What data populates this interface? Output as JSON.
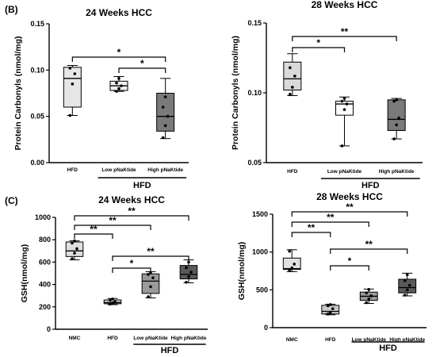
{
  "panel_labels": [
    "(B)",
    "(C)"
  ],
  "chart_data": [
    {
      "type": "box",
      "title": "24 Weeks HCC",
      "ylabel": "Protein Carbonyls (nmol/mg)",
      "ylim": [
        0,
        0.15
      ],
      "yticks": [
        "0.00",
        "0.05",
        "0.10",
        "0.15"
      ],
      "ytick_values": [
        0,
        0.05,
        0.1,
        0.15
      ],
      "group_label": "HFD",
      "categories": [
        "HFD",
        "Low pNaKtide",
        "High pNaKtide"
      ],
      "grouped": [
        false,
        true,
        true
      ],
      "boxes": [
        {
          "min": 0.051,
          "q1": 0.06,
          "median": 0.091,
          "q3": 0.103,
          "max": 0.105,
          "fill": "#e6e6e6",
          "points": [
            0.051,
            0.085,
            0.096,
            0.102
          ]
        },
        {
          "min": 0.077,
          "q1": 0.078,
          "median": 0.083,
          "q3": 0.088,
          "max": 0.093,
          "fill": "#f2f2f2",
          "points": [
            0.077,
            0.08,
            0.083,
            0.086,
            0.091
          ]
        },
        {
          "min": 0.026,
          "q1": 0.034,
          "median": 0.05,
          "q3": 0.075,
          "max": 0.091,
          "fill": "#7a7a7a",
          "points": [
            0.027,
            0.04,
            0.05,
            0.06,
            0.071
          ]
        }
      ],
      "significance": [
        {
          "from": 0,
          "to": 2,
          "label": "*"
        },
        {
          "from": 1,
          "to": 2,
          "label": "*"
        }
      ]
    },
    {
      "type": "box",
      "title": "28 Weeks HCC",
      "ylabel": "Protein Carbonyls (nmol/mg)",
      "ylim": [
        0.05,
        0.15
      ],
      "yticks": [
        "0.05",
        "0.10",
        "0.15"
      ],
      "ytick_values": [
        0.05,
        0.1,
        0.15
      ],
      "group_label": "HFD",
      "categories": [
        "HFD",
        "Low pNaKtide",
        "High pNaKtide"
      ],
      "grouped": [
        false,
        true,
        true
      ],
      "boxes": [
        {
          "min": 0.098,
          "q1": 0.102,
          "median": 0.11,
          "q3": 0.122,
          "max": 0.128,
          "fill": "#d9d9d9",
          "points": [
            0.099,
            0.104,
            0.112,
            0.118
          ]
        },
        {
          "min": 0.062,
          "q1": 0.084,
          "median": 0.092,
          "q3": 0.094,
          "max": 0.097,
          "fill": "#ffffff",
          "points": [
            0.062,
            0.088,
            0.092,
            0.094,
            0.096
          ]
        },
        {
          "min": 0.067,
          "q1": 0.073,
          "median": 0.081,
          "q3": 0.095,
          "max": 0.096,
          "fill": "#7a7a7a",
          "points": [
            0.067,
            0.077,
            0.082,
            0.094,
            0.095
          ]
        }
      ],
      "significance": [
        {
          "from": 0,
          "to": 1,
          "label": "*"
        },
        {
          "from": 0,
          "to": 2,
          "label": "**"
        }
      ]
    },
    {
      "type": "box",
      "title": "24 Weeks HCC",
      "ylabel": "GSH(nmol/mg)",
      "ylim": [
        0,
        1000
      ],
      "yticks": [
        "0",
        "200",
        "400",
        "600",
        "800",
        "1000"
      ],
      "ytick_values": [
        0,
        200,
        400,
        600,
        800,
        1000
      ],
      "group_label": "HFD",
      "categories": [
        "NMC",
        "HFD",
        "Low pNaKtide",
        "High pNaKtide"
      ],
      "grouped": [
        false,
        false,
        true,
        true
      ],
      "boxes": [
        {
          "min": 620,
          "q1": 650,
          "median": 700,
          "q3": 780,
          "max": 790,
          "fill": "#e0e0e0",
          "points": [
            630,
            680,
            720,
            770,
            790
          ]
        },
        {
          "min": 220,
          "q1": 228,
          "median": 238,
          "q3": 262,
          "max": 275,
          "fill": "#c8c8c8",
          "points": [
            225,
            235,
            245,
            260,
            270
          ]
        },
        {
          "min": 280,
          "q1": 320,
          "median": 430,
          "q3": 495,
          "max": 515,
          "fill": "#9a9a9a",
          "points": [
            290,
            380,
            460,
            490,
            505
          ]
        },
        {
          "min": 415,
          "q1": 450,
          "median": 490,
          "q3": 570,
          "max": 620,
          "fill": "#5a5a5a",
          "points": [
            420,
            470,
            510,
            550,
            600
          ]
        }
      ],
      "significance": [
        {
          "from": 0,
          "to": 1,
          "label": "**"
        },
        {
          "from": 0,
          "to": 2,
          "label": "**"
        },
        {
          "from": 0,
          "to": 3,
          "label": "**"
        },
        {
          "from": 1,
          "to": 2,
          "label": "*"
        },
        {
          "from": 1,
          "to": 3,
          "label": "**"
        }
      ]
    },
    {
      "type": "box",
      "title": "28 Weeks HCC",
      "ylabel": "GSH(nmol/mg)",
      "ylim": [
        0,
        1500
      ],
      "yticks": [
        "0",
        "500",
        "1000",
        "1500"
      ],
      "ytick_values": [
        0,
        500,
        1000,
        1500
      ],
      "group_label": "HFD",
      "categories": [
        "NMC",
        "HFD",
        "Low pNaKtide",
        "High pNaKtide"
      ],
      "grouped": [
        false,
        false,
        true,
        true
      ],
      "boxes": [
        {
          "min": 740,
          "q1": 770,
          "median": 780,
          "q3": 920,
          "max": 1030,
          "fill": "#e0e0e0",
          "points": [
            760,
            790,
            840,
            1010
          ]
        },
        {
          "min": 170,
          "q1": 180,
          "median": 215,
          "q3": 295,
          "max": 310,
          "fill": "#c8c8c8",
          "points": [
            180,
            200,
            250,
            290,
            305
          ]
        },
        {
          "min": 320,
          "q1": 360,
          "median": 415,
          "q3": 470,
          "max": 510,
          "fill": "#9a9a9a",
          "points": [
            330,
            380,
            420,
            460,
            505
          ]
        },
        {
          "min": 420,
          "q1": 460,
          "median": 530,
          "q3": 640,
          "max": 720,
          "fill": "#5a5a5a",
          "points": [
            430,
            500,
            560,
            620,
            700
          ]
        }
      ],
      "significance": [
        {
          "from": 0,
          "to": 1,
          "label": "**"
        },
        {
          "from": 0,
          "to": 2,
          "label": "**"
        },
        {
          "from": 0,
          "to": 3,
          "label": "**"
        },
        {
          "from": 1,
          "to": 2,
          "label": "*"
        },
        {
          "from": 1,
          "to": 3,
          "label": "**"
        }
      ]
    }
  ]
}
